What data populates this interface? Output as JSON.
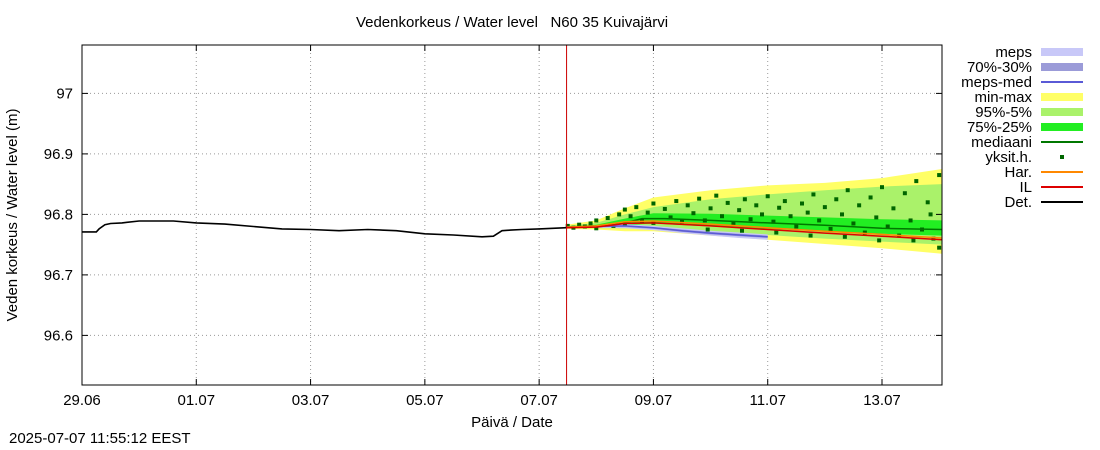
{
  "chart_data": {
    "type": "line",
    "title": "Vedenkorkeus / Water level   N60 35 Kuivajärvi",
    "xlabel": "Päivä / Date",
    "ylabel": "Veden korkeus / Water level (m)",
    "xlim": [
      0,
      15.05
    ],
    "ylim": [
      96.518,
      97.08
    ],
    "grid": true,
    "x_ticks": [
      {
        "x": 0,
        "label": "29.06"
      },
      {
        "x": 2,
        "label": "01.07"
      },
      {
        "x": 4,
        "label": "03.07"
      },
      {
        "x": 6,
        "label": "05.07"
      },
      {
        "x": 8,
        "label": "07.07"
      },
      {
        "x": 10,
        "label": "09.07"
      },
      {
        "x": 12,
        "label": "11.07"
      },
      {
        "x": 14,
        "label": "13.07"
      }
    ],
    "y_ticks": [
      {
        "y": 96.6,
        "label": "96.6"
      },
      {
        "y": 96.7,
        "label": "96.7"
      },
      {
        "y": 96.8,
        "label": "96.8"
      },
      {
        "y": 96.9,
        "label": "96.9"
      },
      {
        "y": 97.0,
        "label": "97"
      }
    ],
    "now_line_x": 8.48,
    "legend_position": "right",
    "legend": [
      {
        "label": "meps",
        "kind": "box",
        "color": "#c8c8f8"
      },
      {
        "label": "70%-30%",
        "kind": "box",
        "color": "#9b9bd8"
      },
      {
        "label": "meps-med",
        "kind": "line",
        "color": "#5a5ad6"
      },
      {
        "label": "min-max",
        "kind": "box",
        "color": "#ffff66"
      },
      {
        "label": "95%-5%",
        "kind": "box",
        "color": "#aaf26a"
      },
      {
        "label": "75%-25%",
        "kind": "box",
        "color": "#22ee22"
      },
      {
        "label": "mediaani",
        "kind": "line",
        "color": "#007700"
      },
      {
        "label": "yksit.h.",
        "kind": "dot",
        "color": "#006600"
      },
      {
        "label": "Har.",
        "kind": "line",
        "color": "#ff8800"
      },
      {
        "label": "IL",
        "kind": "line",
        "color": "#dd0000"
      },
      {
        "label": "Det.",
        "kind": "line",
        "color": "#000000"
      }
    ],
    "series": [
      {
        "name": "Det.",
        "color": "#000000",
        "x": [
          0,
          0.25,
          0.3,
          0.4,
          0.5,
          0.7,
          1.0,
          1.3,
          1.6,
          2.0,
          2.5,
          3.0,
          3.5,
          4.0,
          4.5,
          5.0,
          5.5,
          6.0,
          6.5,
          7.0,
          7.2,
          7.35,
          7.5,
          7.7,
          8.0,
          8.48
        ],
        "y": [
          96.771,
          96.771,
          96.776,
          96.783,
          96.785,
          96.786,
          96.789,
          96.789,
          96.789,
          96.786,
          96.784,
          96.78,
          96.776,
          96.775,
          96.773,
          96.775,
          96.773,
          96.768,
          96.766,
          96.763,
          96.764,
          96.773,
          96.774,
          96.775,
          96.776,
          96.778
        ]
      },
      {
        "name": "mediaani",
        "color": "#007700",
        "x": [
          8.48,
          8.8,
          9.2,
          9.5,
          9.8,
          10.2,
          11.0,
          12.0,
          13.0,
          14.0,
          15.05
        ],
        "y": [
          96.779,
          96.78,
          96.782,
          96.786,
          96.793,
          96.793,
          96.79,
          96.786,
          96.782,
          96.777,
          96.775
        ]
      },
      {
        "name": "Har.",
        "color": "#ff8800",
        "x": [
          8.48,
          9.0,
          9.5,
          10.0,
          11.0,
          12.0,
          13.0,
          14.0,
          15.05
        ],
        "y": [
          96.779,
          96.781,
          96.788,
          96.789,
          96.784,
          96.778,
          96.772,
          96.767,
          96.761
        ]
      },
      {
        "name": "IL",
        "color": "#dd0000",
        "x": [
          8.48,
          9.0,
          9.5,
          10.0,
          11.0,
          12.0,
          13.0,
          14.0,
          15.05
        ],
        "y": [
          96.778,
          96.779,
          96.785,
          96.786,
          96.781,
          96.775,
          96.769,
          96.764,
          96.758
        ]
      },
      {
        "name": "meps-med",
        "color": "#5a5ad6",
        "x": [
          8.48,
          9.0,
          9.5,
          10.0,
          10.5,
          11.0,
          11.5,
          12.0
        ],
        "y": [
          96.779,
          96.78,
          96.781,
          96.778,
          96.773,
          96.769,
          96.766,
          96.763
        ]
      }
    ],
    "bands": [
      {
        "name": "min-max",
        "color": "#ffff66",
        "x": [
          8.48,
          9.0,
          9.5,
          10.0,
          11.0,
          12.0,
          13.0,
          14.0,
          15.05
        ],
        "upper": [
          96.783,
          96.79,
          96.81,
          96.828,
          96.84,
          96.848,
          96.852,
          96.86,
          96.875
        ],
        "lower": [
          96.776,
          96.775,
          96.772,
          96.772,
          96.765,
          96.758,
          96.751,
          96.744,
          96.735
        ]
      },
      {
        "name": "95%-5%",
        "color": "#aaf26a",
        "x": [
          8.48,
          9.0,
          9.5,
          10.0,
          11.0,
          12.0,
          13.0,
          14.0,
          15.05
        ],
        "upper": [
          96.781,
          96.786,
          96.8,
          96.812,
          96.825,
          96.833,
          96.84,
          96.846,
          96.85
        ],
        "lower": [
          96.777,
          96.777,
          96.777,
          96.777,
          96.772,
          96.766,
          96.76,
          96.755,
          96.75
        ]
      },
      {
        "name": "75%-25%",
        "color": "#22ee22",
        "x": [
          8.48,
          9.0,
          9.5,
          10.0,
          11.0,
          12.0,
          13.0,
          14.0,
          15.05
        ],
        "upper": [
          96.78,
          96.783,
          96.793,
          96.802,
          96.801,
          96.798,
          96.795,
          96.792,
          96.79
        ],
        "lower": [
          96.778,
          96.779,
          96.782,
          96.785,
          96.78,
          96.776,
          96.772,
          96.768,
          96.765
        ]
      },
      {
        "name": "meps",
        "color": "#c8c8f8",
        "x": [
          8.48,
          9.0,
          9.5,
          10.0,
          10.5,
          11.0,
          11.5,
          12.0
        ],
        "upper": [
          96.78,
          96.782,
          96.784,
          96.781,
          96.777,
          96.773,
          96.77,
          96.767
        ],
        "lower": [
          96.778,
          96.778,
          96.777,
          96.774,
          96.769,
          96.765,
          96.761,
          96.758
        ]
      },
      {
        "name": "70%-30%",
        "color": "#9b9bd8",
        "x": [
          8.48,
          9.0,
          9.5,
          10.0,
          10.5,
          11.0,
          11.5,
          12.0
        ],
        "upper": [
          96.78,
          96.781,
          96.782,
          96.779,
          96.775,
          96.771,
          96.768,
          96.765
        ],
        "lower": [
          96.779,
          96.779,
          96.779,
          96.776,
          96.771,
          96.767,
          96.764,
          96.761
        ]
      }
    ],
    "yksit_points": [
      [
        8.5,
        96.781
      ],
      [
        8.6,
        96.778
      ],
      [
        8.7,
        96.783
      ],
      [
        8.8,
        96.78
      ],
      [
        8.9,
        96.785
      ],
      [
        9.0,
        96.79
      ],
      [
        9.0,
        96.777
      ],
      [
        9.2,
        96.794
      ],
      [
        9.3,
        96.781
      ],
      [
        9.4,
        96.8
      ],
      [
        9.5,
        96.808
      ],
      [
        9.5,
        96.784
      ],
      [
        9.6,
        96.797
      ],
      [
        9.7,
        96.812
      ],
      [
        9.8,
        96.789
      ],
      [
        9.9,
        96.803
      ],
      [
        10.0,
        96.818
      ],
      [
        10.0,
        96.786
      ],
      [
        10.2,
        96.809
      ],
      [
        10.3,
        96.795
      ],
      [
        10.4,
        96.822
      ],
      [
        10.5,
        96.788
      ],
      [
        10.6,
        96.815
      ],
      [
        10.7,
        96.802
      ],
      [
        10.8,
        96.826
      ],
      [
        10.9,
        96.79
      ],
      [
        11.0,
        96.81
      ],
      [
        11.1,
        96.831
      ],
      [
        11.2,
        96.797
      ],
      [
        11.3,
        96.819
      ],
      [
        11.4,
        96.785
      ],
      [
        11.5,
        96.807
      ],
      [
        11.6,
        96.825
      ],
      [
        11.7,
        96.792
      ],
      [
        11.8,
        96.815
      ],
      [
        11.9,
        96.8
      ],
      [
        12.0,
        96.83
      ],
      [
        12.1,
        96.788
      ],
      [
        12.2,
        96.811
      ],
      [
        12.3,
        96.822
      ],
      [
        12.4,
        96.797
      ],
      [
        12.5,
        96.78
      ],
      [
        12.6,
        96.818
      ],
      [
        12.7,
        96.803
      ],
      [
        12.8,
        96.833
      ],
      [
        12.9,
        96.79
      ],
      [
        13.0,
        96.812
      ],
      [
        13.1,
        96.776
      ],
      [
        13.2,
        96.825
      ],
      [
        13.3,
        96.8
      ],
      [
        13.4,
        96.84
      ],
      [
        13.5,
        96.785
      ],
      [
        13.6,
        96.815
      ],
      [
        13.7,
        96.77
      ],
      [
        13.8,
        96.828
      ],
      [
        13.9,
        96.795
      ],
      [
        14.0,
        96.845
      ],
      [
        14.1,
        96.78
      ],
      [
        14.2,
        96.81
      ],
      [
        14.3,
        96.765
      ],
      [
        14.4,
        96.835
      ],
      [
        14.5,
        96.79
      ],
      [
        14.6,
        96.855
      ],
      [
        14.7,
        96.775
      ],
      [
        14.8,
        96.82
      ],
      [
        14.9,
        96.76
      ],
      [
        15.0,
        96.865
      ],
      [
        15.0,
        96.745
      ],
      [
        14.85,
        96.8
      ],
      [
        14.55,
        96.757
      ],
      [
        13.95,
        96.757
      ],
      [
        13.35,
        96.763
      ],
      [
        12.75,
        96.765
      ],
      [
        12.15,
        96.77
      ],
      [
        11.55,
        96.773
      ],
      [
        10.95,
        96.775
      ]
    ]
  },
  "footer": {
    "timestamp": "2025-07-07 11:55:12 EEST"
  }
}
